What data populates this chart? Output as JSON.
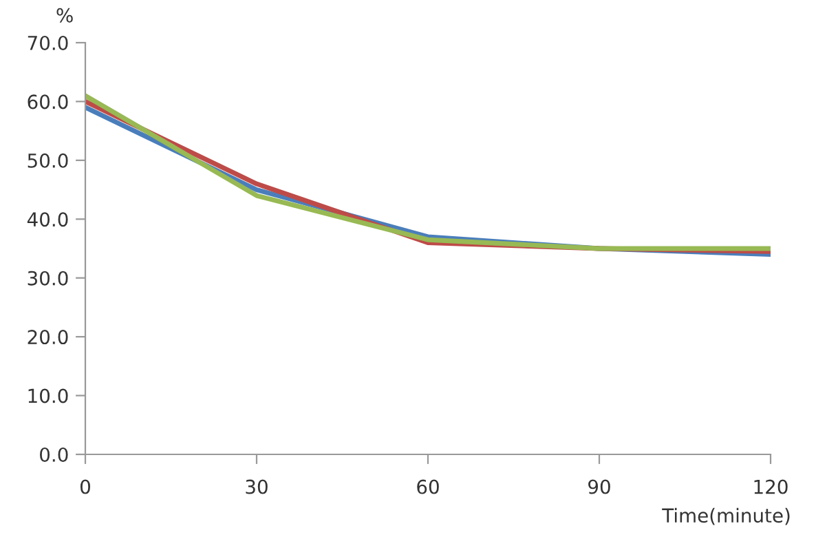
{
  "chart_data": {
    "type": "line",
    "ylabel": "%",
    "xlabel": "Time(minute)",
    "x": [
      0,
      30,
      60,
      90,
      120
    ],
    "series": [
      {
        "color": "#4a7ebb",
        "values": [
          59,
          45,
          37,
          35,
          34
        ]
      },
      {
        "color": "#be4b48",
        "values": [
          60,
          46,
          36,
          35,
          34.5
        ]
      },
      {
        "color": "#98b954",
        "values": [
          61,
          44,
          36.5,
          35,
          35
        ]
      }
    ],
    "xlim": [
      0,
      120
    ],
    "xticks": [
      0,
      30,
      60,
      90,
      120
    ],
    "ylim": [
      0,
      70
    ],
    "yticks": [
      {
        "value": 0,
        "label": "0.0"
      },
      {
        "value": 10,
        "label": "10.0"
      },
      {
        "value": 20,
        "label": "20.0"
      },
      {
        "value": 30,
        "label": "30.0"
      },
      {
        "value": 40,
        "label": "40.0"
      },
      {
        "value": 50,
        "label": "50.0"
      },
      {
        "value": 60,
        "label": "60.0"
      },
      {
        "value": 70,
        "label": "70.0"
      }
    ],
    "grid": false,
    "legend": false,
    "marker": "none",
    "line_style": "solid"
  }
}
